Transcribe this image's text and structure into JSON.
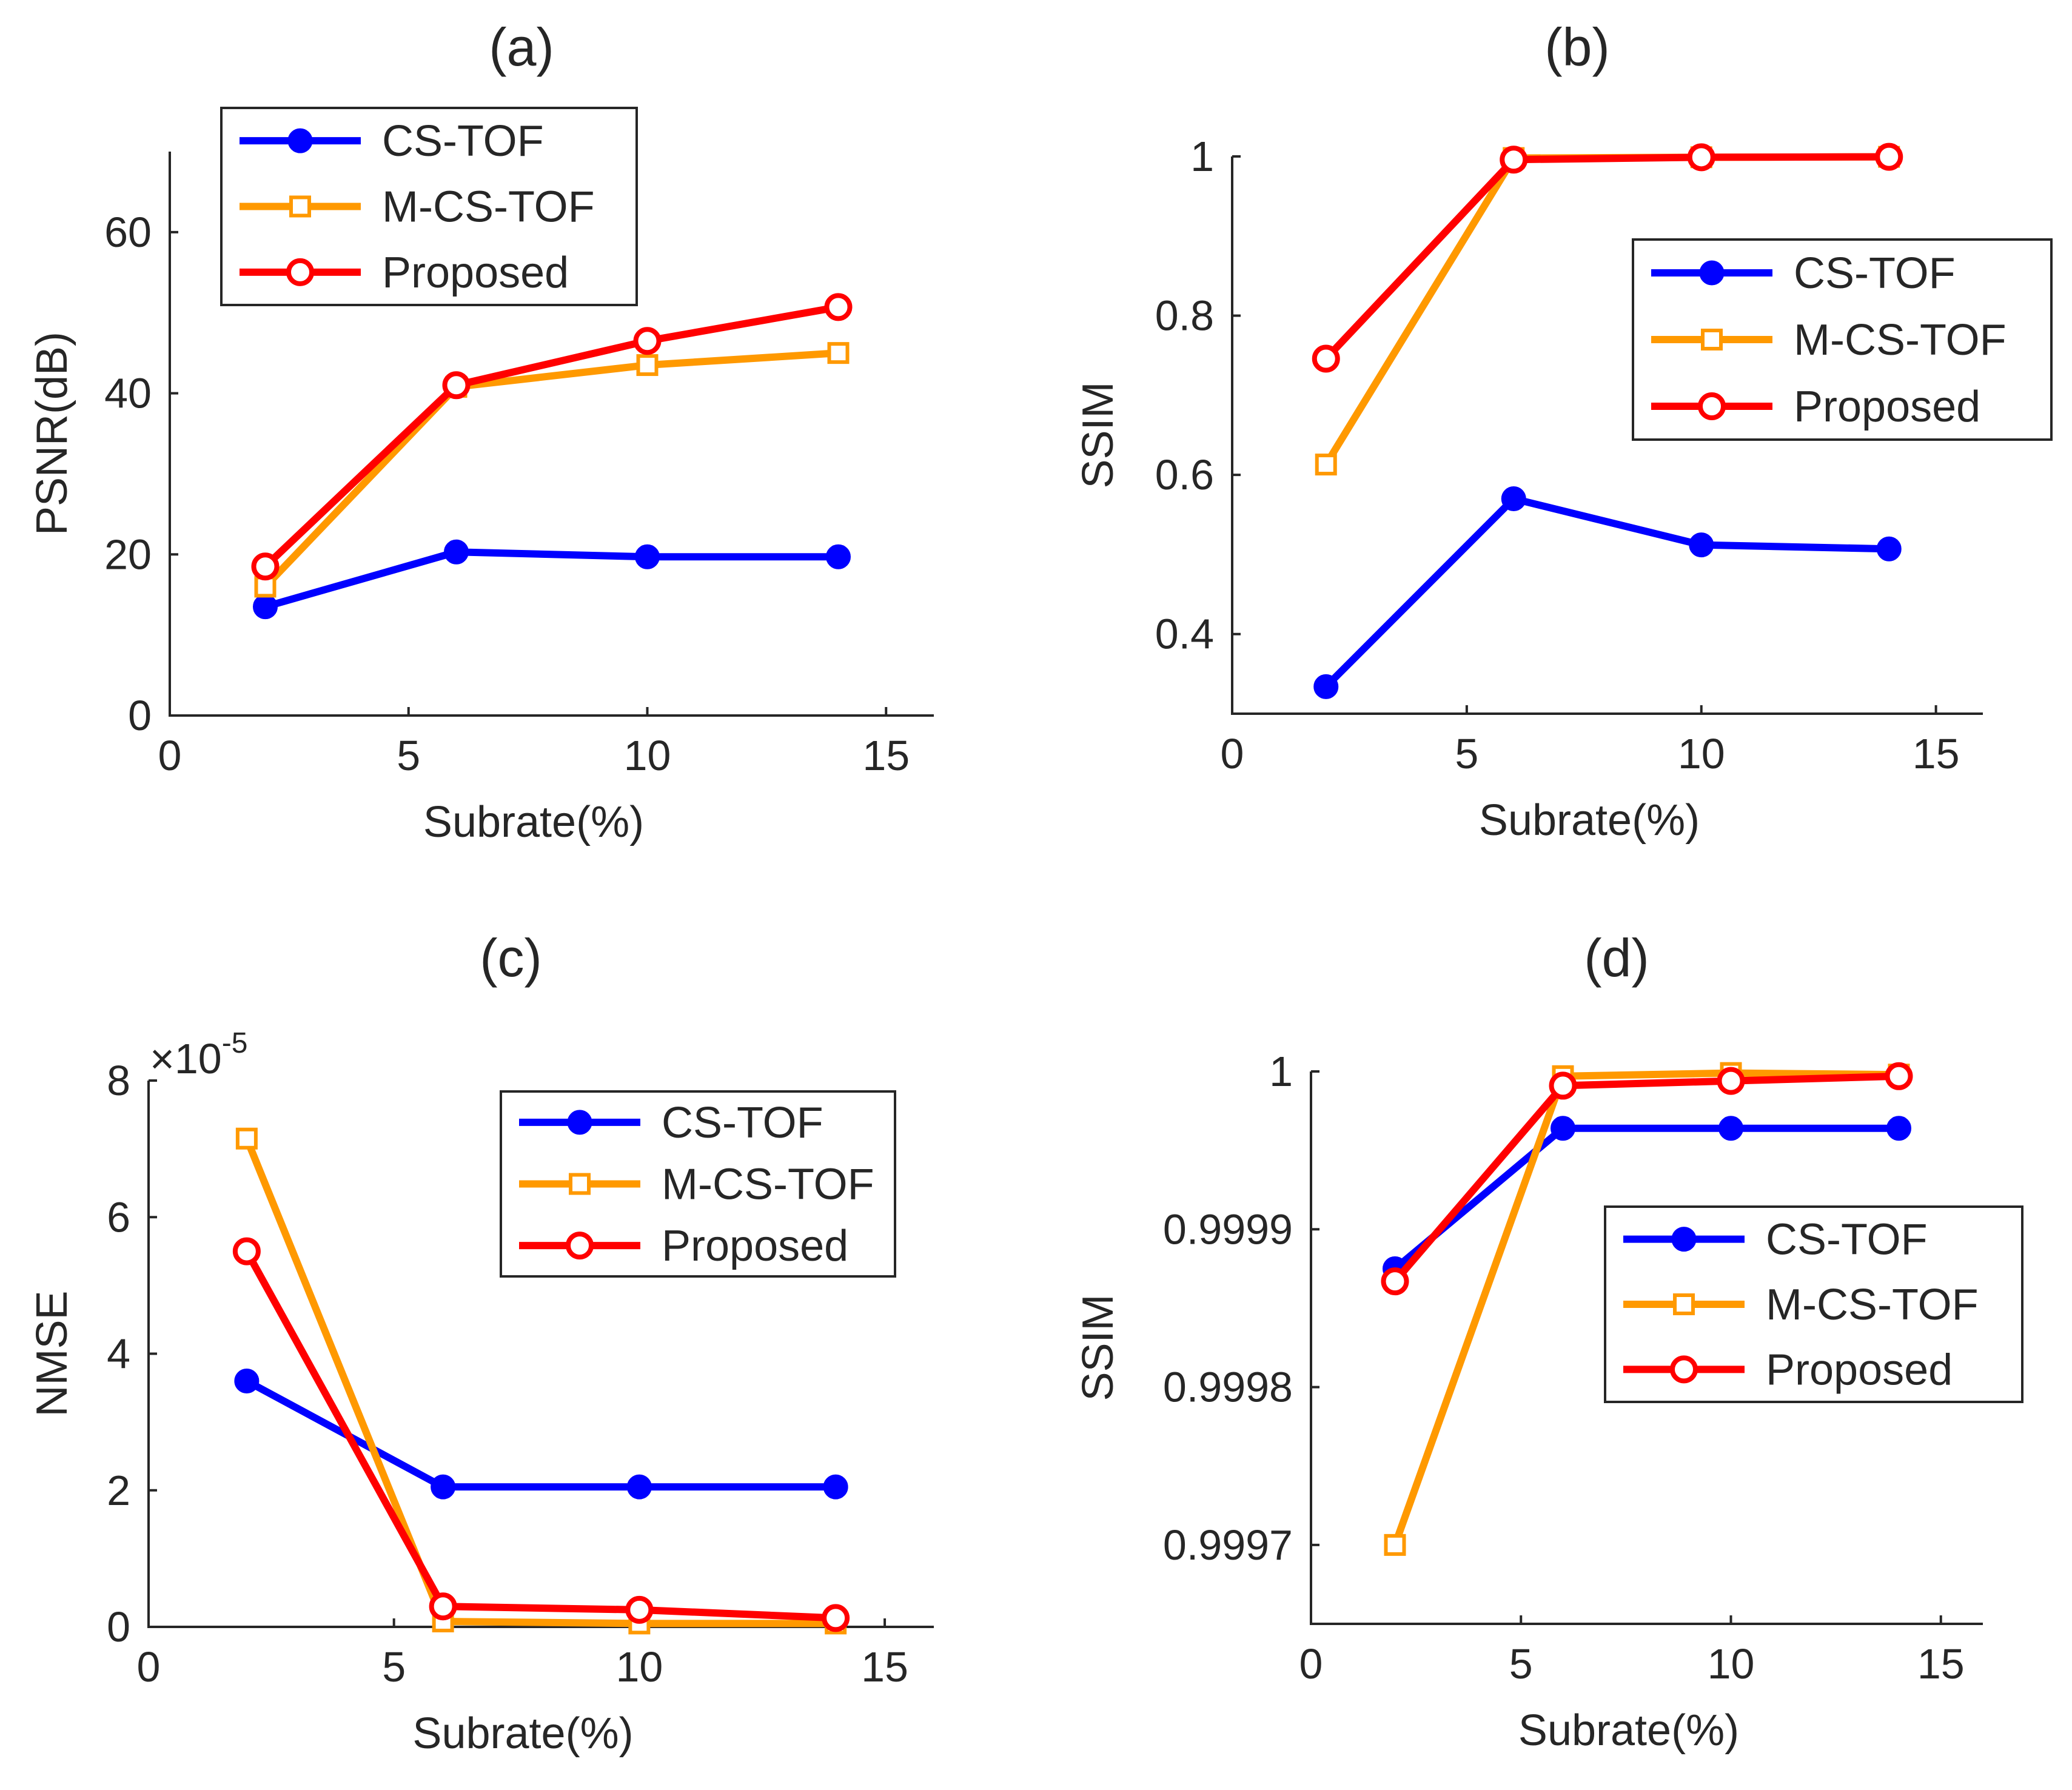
{
  "chart_data": [
    {
      "type": "line",
      "title": "(a)",
      "xlabel": "Subrate(%)",
      "ylabel": "PSNR(dB)",
      "xlim": [
        0,
        16
      ],
      "ylim": [
        0,
        70
      ],
      "xticks": [
        0,
        5,
        10,
        15
      ],
      "xtick_labels": [
        "0",
        "5",
        "10",
        "15"
      ],
      "yticks": [
        0,
        20,
        40,
        60
      ],
      "ytick_labels": [
        "0",
        "20",
        "40",
        "60"
      ],
      "exponent_label": "",
      "legend_position": "top-left",
      "x": [
        2,
        6,
        10,
        14
      ],
      "series": [
        {
          "name": "CS-TOF",
          "values": [
            13.5,
            20.3,
            19.7,
            19.7
          ],
          "color": "#0000ff",
          "marker": "dot"
        },
        {
          "name": "M-CS-TOF",
          "values": [
            16.0,
            40.8,
            43.5,
            45.0
          ],
          "color": "#ff9900",
          "marker": "square"
        },
        {
          "name": "Proposed",
          "values": [
            18.5,
            41.0,
            46.5,
            50.7
          ],
          "color": "#ff0000",
          "marker": "circle"
        }
      ]
    },
    {
      "type": "line",
      "title": "(b)",
      "xlabel": "Subrate(%)",
      "ylabel": "SSIM",
      "xlim": [
        0,
        16
      ],
      "ylim": [
        0.3,
        1.0
      ],
      "xticks": [
        0,
        5,
        10,
        15
      ],
      "xtick_labels": [
        "0",
        "5",
        "10",
        "15"
      ],
      "yticks": [
        0.4,
        0.6,
        0.8,
        1.0
      ],
      "ytick_labels": [
        "0.4",
        "0.6",
        "0.8",
        "1"
      ],
      "exponent_label": "",
      "legend_position": "right",
      "x": [
        2,
        6,
        10,
        14
      ],
      "series": [
        {
          "name": "CS-TOF",
          "values": [
            0.334,
            0.57,
            0.512,
            0.507
          ],
          "color": "#0000ff",
          "marker": "dot"
        },
        {
          "name": "M-CS-TOF",
          "values": [
            0.613,
            0.998,
            0.999,
            0.9995
          ],
          "color": "#ff9900",
          "marker": "square"
        },
        {
          "name": "Proposed",
          "values": [
            0.746,
            0.996,
            0.999,
            0.9995
          ],
          "color": "#ff0000",
          "marker": "circle"
        }
      ]
    },
    {
      "type": "line",
      "title": "(c)",
      "xlabel": "Subrate(%)",
      "ylabel": "NMSE",
      "xlim": [
        0,
        16
      ],
      "ylim": [
        0,
        8
      ],
      "xticks": [
        0,
        5,
        10,
        15
      ],
      "xtick_labels": [
        "0",
        "5",
        "10",
        "15"
      ],
      "yticks": [
        0,
        2,
        4,
        6,
        8
      ],
      "ytick_labels": [
        "0",
        "2",
        "4",
        "6",
        "8"
      ],
      "exponent_label": "×10",
      "exponent_power": "-5",
      "legend_position": "top-right",
      "x": [
        2,
        6,
        10,
        14
      ],
      "series": [
        {
          "name": "CS-TOF",
          "values": [
            3.6,
            2.05,
            2.05,
            2.05
          ],
          "color": "#0000ff",
          "marker": "dot"
        },
        {
          "name": "M-CS-TOF",
          "values": [
            7.15,
            0.08,
            0.05,
            0.05
          ],
          "color": "#ff9900",
          "marker": "square"
        },
        {
          "name": "Proposed",
          "values": [
            5.5,
            0.3,
            0.25,
            0.13
          ],
          "color": "#ff0000",
          "marker": "circle"
        }
      ]
    },
    {
      "type": "line",
      "title": "(d)",
      "xlabel": "Subrate(%)",
      "ylabel": "SSIM",
      "xlim": [
        0,
        16
      ],
      "ylim": [
        0.99965,
        1.0
      ],
      "xticks": [
        0,
        5,
        10,
        15
      ],
      "xtick_labels": [
        "0",
        "5",
        "10",
        "15"
      ],
      "yticks": [
        0.9997,
        0.9998,
        0.9999,
        1.0
      ],
      "ytick_labels": [
        "0.9997",
        "0.9998",
        "0.9999",
        "1"
      ],
      "exponent_label": "",
      "legend_position": "right",
      "x": [
        2,
        6,
        10,
        14
      ],
      "series": [
        {
          "name": "CS-TOF",
          "values": [
            0.999875,
            0.999964,
            0.999964,
            0.999964
          ],
          "color": "#0000ff",
          "marker": "dot"
        },
        {
          "name": "M-CS-TOF",
          "values": [
            0.9997,
            0.999997,
            0.999999,
            0.999998
          ],
          "color": "#ff9900",
          "marker": "square"
        },
        {
          "name": "Proposed",
          "values": [
            0.999867,
            0.999991,
            0.999994,
            0.999997
          ],
          "color": "#ff0000",
          "marker": "circle"
        }
      ]
    }
  ]
}
